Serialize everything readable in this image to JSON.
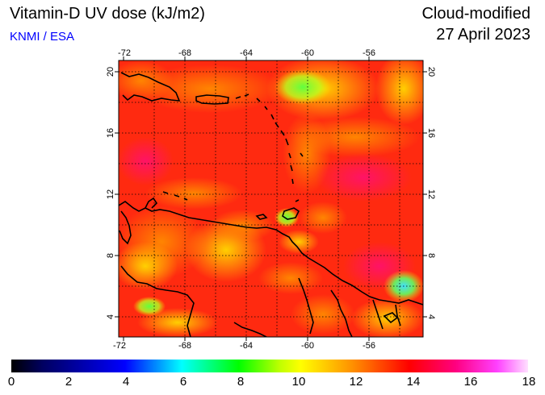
{
  "header": {
    "title": "Vitamin-D UV dose (kJ/m2)",
    "credit": "KNMI / ESA",
    "product": "Cloud-modified",
    "date": "27 April 2023"
  },
  "map": {
    "lon_range": [
      -72,
      -52
    ],
    "lat_range": [
      3,
      21
    ],
    "lon_ticks": [
      "-72",
      "-68",
      "-64",
      "-60",
      "-56"
    ],
    "lat_ticks": [
      "4",
      "8",
      "12",
      "16",
      "20"
    ],
    "grid": "dotted every 2 degrees",
    "colors": {
      "dominant": "#ff2a10",
      "orange": "#ff7a00",
      "yellow": "#ffe000",
      "green": "#70ff30",
      "magenta": "#ff1070"
    }
  },
  "colorbar": {
    "labels": [
      "0",
      "2",
      "4",
      "6",
      "8",
      "10",
      "12",
      "14",
      "16",
      "18"
    ]
  }
}
